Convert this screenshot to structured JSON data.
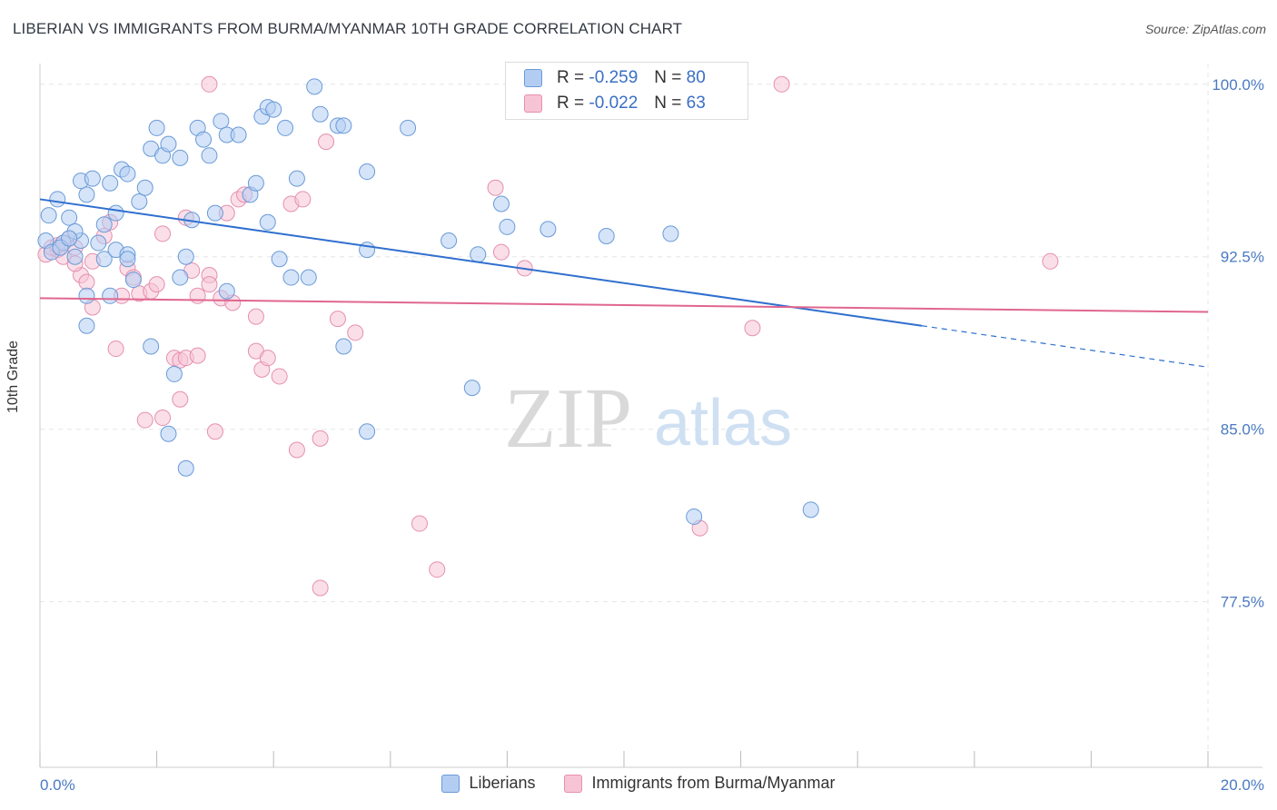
{
  "header": {
    "title": "LIBERIAN VS IMMIGRANTS FROM BURMA/MYANMAR 10TH GRADE CORRELATION CHART",
    "source": "Source: ZipAtlas.com"
  },
  "watermark": {
    "zip": "ZIP",
    "atlas": "atlas"
  },
  "legend": {
    "rows": [
      {
        "r_label": "R =",
        "r_value": "-0.259",
        "n_label": "N =",
        "n_value": "80"
      },
      {
        "r_label": "R =",
        "r_value": "-0.022",
        "n_label": "N =",
        "n_value": "63"
      }
    ]
  },
  "bottom_legend": {
    "liberians": "Liberians",
    "burma": "Immigrants from Burma/Myanmar"
  },
  "colors": {
    "blue_fill": "#b3cdf2",
    "blue_stroke": "#6a9ad8",
    "blue_line": "#2f6fce",
    "pink_fill": "#f7c4d6",
    "pink_stroke": "#e58fb0",
    "pink_line": "#e0668f",
    "tick_text": "#4a7ac2",
    "grid": "#e6e6e6"
  },
  "chart_data": {
    "type": "scatter",
    "title": "LIBERIAN VS IMMIGRANTS FROM BURMA/MYANMAR 10TH GRADE CORRELATION CHART",
    "ylabel": "10th Grade",
    "xlim": [
      0,
      20
    ],
    "ylim": [
      70.3,
      100.9
    ],
    "x_tick_labels": [
      "0.0%",
      "20.0%"
    ],
    "y_ticks": [
      77.5,
      85.0,
      92.5,
      100.0
    ],
    "y_tick_labels": [
      "77.5%",
      "85.0%",
      "92.5%",
      "100.0%"
    ],
    "grid": true,
    "series": [
      {
        "name": "Liberians",
        "trend": {
          "x0": 0,
          "y0": 95.0,
          "x1": 15.1,
          "y1": 89.5,
          "dashed_to_x": 20,
          "dashed_to_y": 87.7
        },
        "points": [
          [
            0.15,
            94.3
          ],
          [
            0.3,
            95.0
          ],
          [
            0.4,
            93.1
          ],
          [
            0.5,
            94.2
          ],
          [
            0.6,
            92.5
          ],
          [
            0.7,
            93.2
          ],
          [
            0.6,
            93.6
          ],
          [
            0.8,
            95.2
          ],
          [
            0.7,
            95.8
          ],
          [
            0.9,
            95.9
          ],
          [
            1.0,
            93.1
          ],
          [
            1.1,
            92.4
          ],
          [
            1.1,
            93.9
          ],
          [
            1.2,
            95.7
          ],
          [
            1.3,
            92.8
          ],
          [
            1.3,
            94.4
          ],
          [
            1.4,
            96.3
          ],
          [
            1.5,
            96.1
          ],
          [
            1.5,
            92.6
          ],
          [
            1.6,
            91.5
          ],
          [
            1.7,
            94.9
          ],
          [
            1.8,
            95.5
          ],
          [
            1.9,
            97.2
          ],
          [
            2.0,
            98.1
          ],
          [
            2.1,
            96.9
          ],
          [
            2.2,
            97.4
          ],
          [
            2.4,
            96.8
          ],
          [
            2.5,
            92.5
          ],
          [
            2.4,
            91.6
          ],
          [
            2.6,
            94.1
          ],
          [
            2.7,
            98.1
          ],
          [
            2.8,
            97.6
          ],
          [
            2.9,
            96.9
          ],
          [
            3.0,
            94.4
          ],
          [
            3.1,
            98.4
          ],
          [
            3.2,
            97.8
          ],
          [
            3.4,
            97.8
          ],
          [
            3.6,
            95.2
          ],
          [
            3.7,
            95.7
          ],
          [
            3.8,
            98.6
          ],
          [
            3.9,
            99.0
          ],
          [
            4.0,
            98.9
          ],
          [
            3.9,
            94.0
          ],
          [
            4.1,
            92.4
          ],
          [
            4.2,
            98.1
          ],
          [
            4.3,
            91.6
          ],
          [
            4.4,
            95.9
          ],
          [
            4.6,
            91.6
          ],
          [
            4.7,
            99.9
          ],
          [
            4.8,
            98.7
          ],
          [
            5.1,
            98.2
          ],
          [
            5.2,
            98.2
          ],
          [
            5.6,
            96.2
          ],
          [
            5.6,
            92.8
          ],
          [
            6.3,
            98.1
          ],
          [
            7.0,
            93.2
          ],
          [
            7.5,
            92.6
          ],
          [
            7.9,
            94.8
          ],
          [
            8.0,
            93.8
          ],
          [
            8.7,
            93.7
          ],
          [
            9.7,
            93.4
          ],
          [
            10.8,
            93.5
          ],
          [
            0.8,
            90.8
          ],
          [
            0.8,
            89.5
          ],
          [
            1.2,
            90.8
          ],
          [
            1.9,
            88.6
          ],
          [
            2.3,
            87.4
          ],
          [
            2.2,
            84.8
          ],
          [
            2.5,
            83.3
          ],
          [
            3.2,
            91.0
          ],
          [
            5.2,
            88.6
          ],
          [
            5.6,
            84.9
          ],
          [
            7.4,
            86.8
          ],
          [
            11.2,
            81.2
          ],
          [
            13.2,
            81.5
          ],
          [
            0.1,
            93.2
          ],
          [
            0.2,
            92.7
          ],
          [
            0.35,
            92.9
          ],
          [
            1.5,
            92.4
          ],
          [
            0.5,
            93.3
          ]
        ]
      },
      {
        "name": "Immigrants from Burma/Myanmar",
        "trend": {
          "x0": 0,
          "y0": 90.7,
          "x1": 20,
          "y1": 90.1
        },
        "points": [
          [
            0.1,
            92.6
          ],
          [
            0.3,
            92.8
          ],
          [
            0.4,
            92.5
          ],
          [
            0.5,
            93.3
          ],
          [
            0.6,
            92.9
          ],
          [
            0.7,
            91.7
          ],
          [
            0.9,
            92.3
          ],
          [
            0.8,
            91.4
          ],
          [
            0.9,
            90.3
          ],
          [
            1.1,
            93.4
          ],
          [
            1.2,
            94.0
          ],
          [
            1.3,
            88.5
          ],
          [
            1.4,
            90.8
          ],
          [
            1.5,
            92.0
          ],
          [
            1.6,
            91.6
          ],
          [
            1.7,
            90.9
          ],
          [
            1.8,
            85.4
          ],
          [
            1.9,
            91.0
          ],
          [
            2.0,
            91.3
          ],
          [
            2.1,
            85.5
          ],
          [
            2.1,
            93.5
          ],
          [
            2.3,
            88.1
          ],
          [
            2.4,
            86.3
          ],
          [
            2.4,
            88.0
          ],
          [
            2.5,
            94.2
          ],
          [
            2.5,
            88.1
          ],
          [
            2.6,
            91.9
          ],
          [
            2.7,
            88.2
          ],
          [
            2.7,
            90.8
          ],
          [
            2.9,
            91.7
          ],
          [
            2.9,
            91.3
          ],
          [
            3.0,
            84.9
          ],
          [
            3.1,
            90.7
          ],
          [
            3.2,
            94.4
          ],
          [
            3.3,
            90.5
          ],
          [
            3.4,
            95.0
          ],
          [
            3.5,
            95.2
          ],
          [
            3.7,
            89.9
          ],
          [
            3.7,
            88.4
          ],
          [
            3.8,
            87.6
          ],
          [
            3.9,
            88.1
          ],
          [
            4.1,
            87.3
          ],
          [
            4.3,
            94.8
          ],
          [
            4.4,
            84.1
          ],
          [
            4.5,
            95.0
          ],
          [
            4.8,
            84.6
          ],
          [
            4.8,
            78.1
          ],
          [
            4.9,
            97.5
          ],
          [
            5.1,
            89.8
          ],
          [
            5.4,
            89.2
          ],
          [
            6.5,
            80.9
          ],
          [
            6.8,
            78.9
          ],
          [
            7.8,
            95.5
          ],
          [
            7.9,
            92.7
          ],
          [
            8.3,
            92.0
          ],
          [
            11.3,
            80.7
          ],
          [
            12.2,
            89.4
          ],
          [
            12.7,
            100.0
          ],
          [
            2.9,
            100.0
          ],
          [
            17.3,
            92.3
          ],
          [
            0.2,
            92.9
          ],
          [
            0.3,
            93.0
          ],
          [
            0.6,
            92.2
          ]
        ]
      }
    ]
  }
}
